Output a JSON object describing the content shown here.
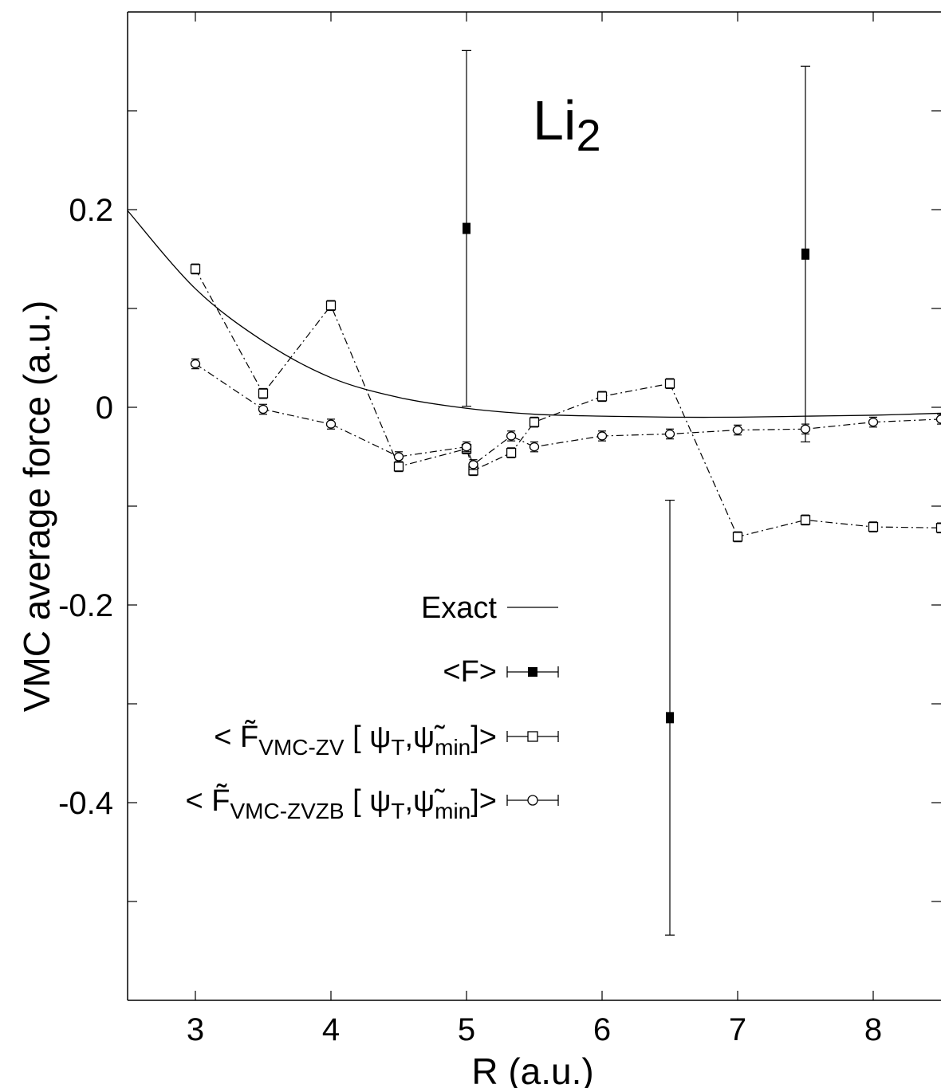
{
  "chart_data": {
    "type": "line",
    "title": "",
    "annotation": {
      "main": "Li",
      "sub": "2"
    },
    "xlabel": "R (a.u.)",
    "ylabel": "VMC average force (a.u.)",
    "xlim": [
      2.5,
      8.5
    ],
    "ylim": [
      -0.6,
      0.4
    ],
    "xticks": [
      3,
      4,
      5,
      6,
      7,
      8
    ],
    "yticks": [
      0.2,
      0,
      -0.2,
      -0.4
    ],
    "ytick_labels": [
      "0.2",
      "0",
      "-0.2",
      "-0.4"
    ],
    "grid": false,
    "legend_position": "center-left",
    "series": [
      {
        "name": "Exact",
        "kind": "curve",
        "x": [
          2.5,
          3.0,
          3.5,
          4.0,
          4.5,
          5.0,
          5.5,
          6.0,
          6.5,
          7.0,
          7.5,
          8.0,
          8.5
        ],
        "y": [
          0.199,
          0.12,
          0.067,
          0.03,
          0.01,
          -0.001,
          -0.007,
          -0.009,
          -0.01,
          -0.01,
          -0.009,
          -0.008,
          -0.006
        ]
      },
      {
        "name": "<F>",
        "kind": "points",
        "marker": "filled-square",
        "x": [
          5.0,
          6.5,
          7.5
        ],
        "y": [
          0.181,
          -0.314,
          0.155
        ],
        "err": [
          0.18,
          0.22,
          0.19
        ]
      },
      {
        "name": "< F̃VMC-ZV [ ψT,ψ̃min]>",
        "label_main": "< F̃",
        "label_sub": "VMC-ZV",
        "label_rest": " [ ψ",
        "label_sub2": "T",
        "label_rest2": ",ψ̃",
        "label_sub3": "min",
        "label_end": "]>",
        "kind": "dashdot",
        "marker": "open-square",
        "x": [
          3.0,
          3.5,
          4.0,
          4.5,
          5.0,
          5.05,
          5.33,
          5.5,
          6.0,
          6.5,
          7.0,
          7.5,
          8.0,
          8.5
        ],
        "y": [
          0.14,
          0.014,
          0.103,
          -0.06,
          -0.042,
          -0.064,
          -0.046,
          -0.015,
          0.011,
          0.024,
          -0.131,
          -0.114,
          -0.121,
          -0.122
        ],
        "err": [
          0.005,
          0.005,
          0.005,
          0.005,
          0.005,
          0.005,
          0.005,
          0.005,
          0.005,
          0.005,
          0.005,
          0.005,
          0.005,
          0.005
        ]
      },
      {
        "name": "< F̃VMC-ZVZB [ ψT,ψ̃min]>",
        "label_main": "< F̃",
        "label_sub": "VMC-ZVZB",
        "label_rest": " [ ψ",
        "label_sub2": "T",
        "label_rest2": ",ψ̃",
        "label_sub3": "min",
        "label_end": "]>",
        "kind": "dashdot",
        "marker": "open-circle",
        "x": [
          3.0,
          3.5,
          4.0,
          4.5,
          5.0,
          5.05,
          5.33,
          5.5,
          6.0,
          6.5,
          7.0,
          7.5,
          8.0,
          8.5
        ],
        "y": [
          0.044,
          -0.002,
          -0.017,
          -0.05,
          -0.04,
          -0.058,
          -0.029,
          -0.04,
          -0.029,
          -0.027,
          -0.023,
          -0.022,
          -0.015,
          -0.012
        ],
        "err": [
          0.005,
          0.005,
          0.005,
          0.005,
          0.005,
          0.005,
          0.005,
          0.005,
          0.005,
          0.005,
          0.005,
          0.005,
          0.005,
          0.005
        ]
      }
    ]
  }
}
